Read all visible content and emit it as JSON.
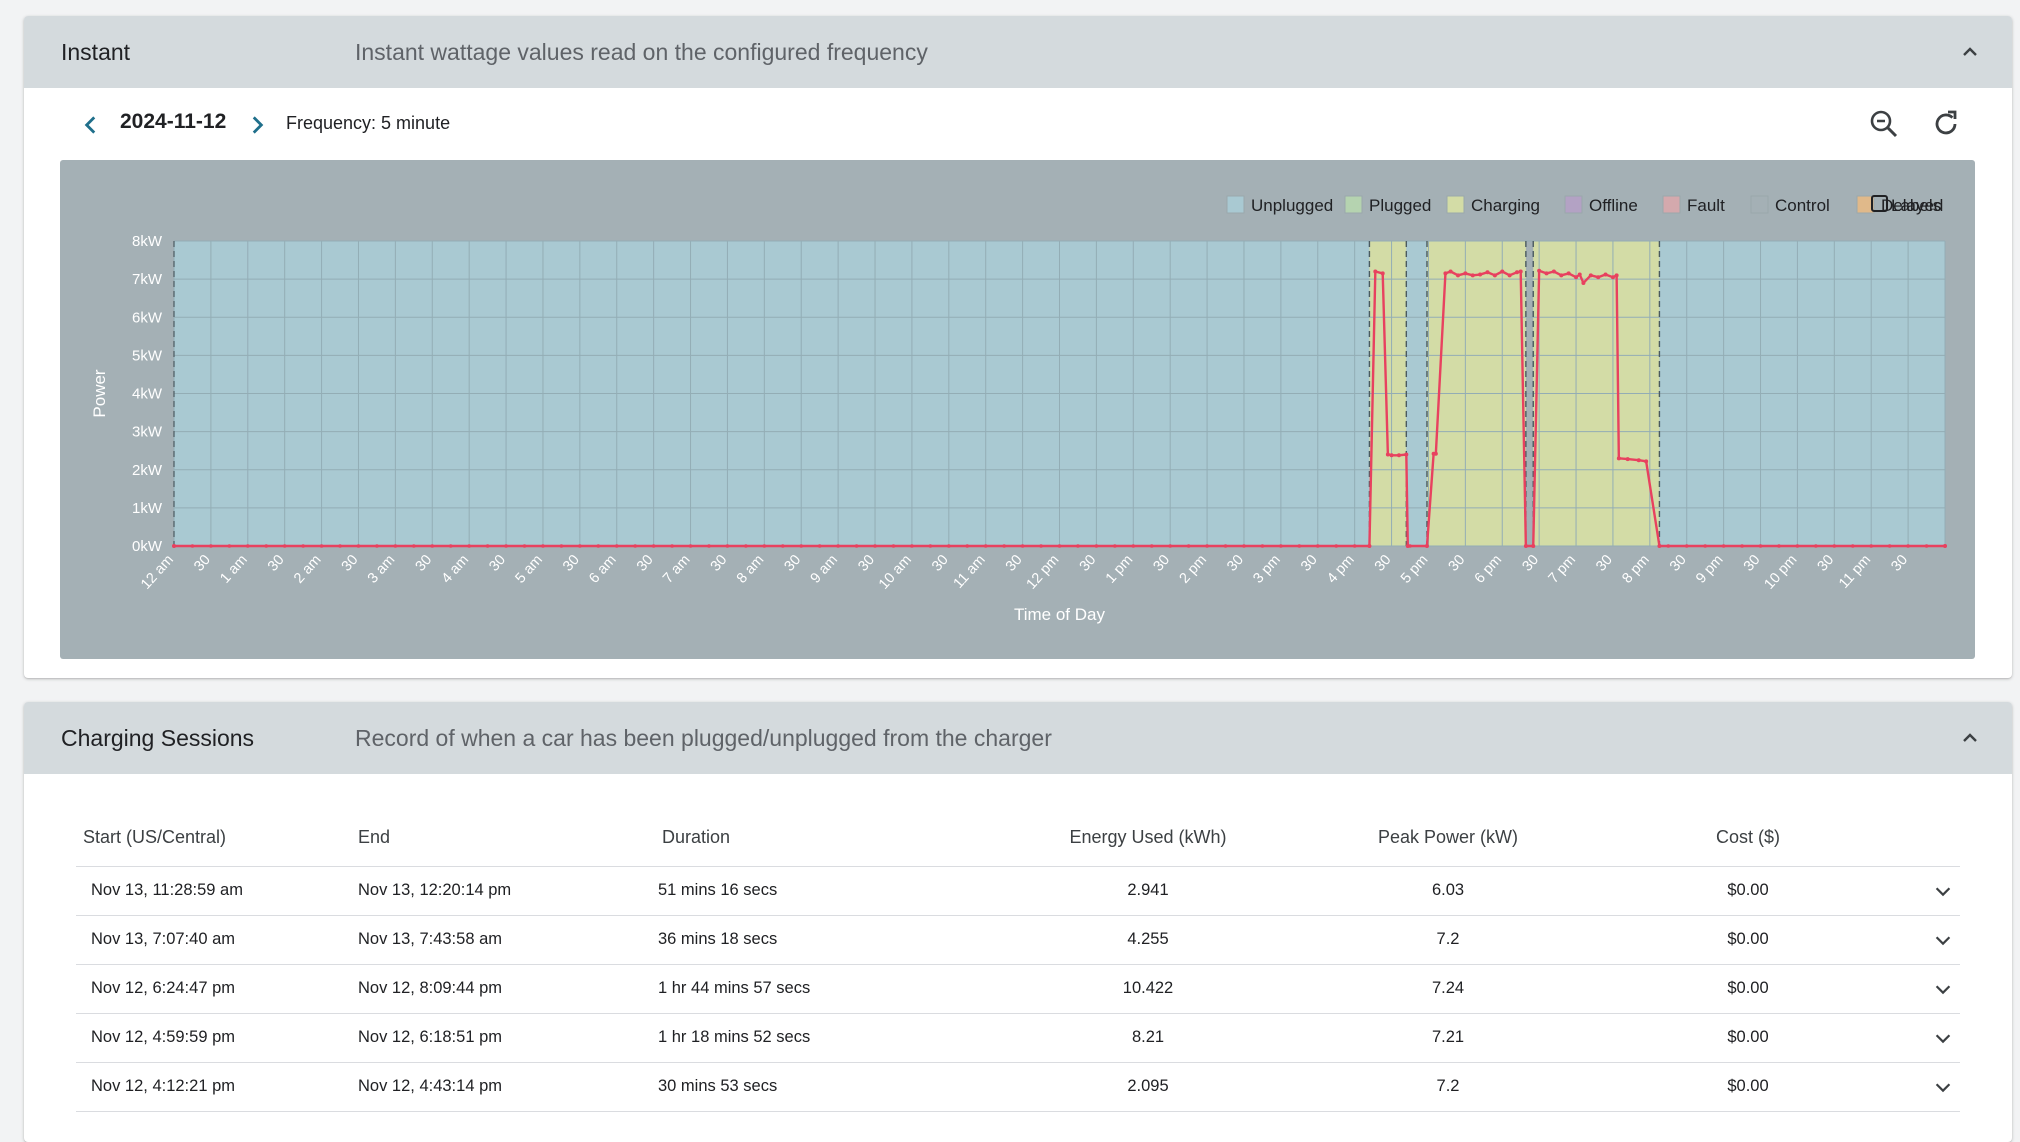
{
  "instant": {
    "title": "Instant",
    "description": "Instant wattage values read on the configured frequency",
    "date": "2024-11-12",
    "frequency": "Frequency: 5 minute"
  },
  "chart_data": {
    "type": "line",
    "xlabel": "Time of Day",
    "ylabel": "Power",
    "y_ticks": [
      "0kW",
      "1kW",
      "2kW",
      "3kW",
      "4kW",
      "5kW",
      "6kW",
      "7kW",
      "8kW"
    ],
    "ylim": [
      0,
      8
    ],
    "xlim": [
      0,
      24
    ],
    "x_tick_labels": [
      "12 am",
      "30",
      "1 am",
      "30",
      "2 am",
      "30",
      "3 am",
      "30",
      "4 am",
      "30",
      "5 am",
      "30",
      "6 am",
      "30",
      "7 am",
      "30",
      "8 am",
      "30",
      "9 am",
      "30",
      "10 am",
      "30",
      "11 am",
      "30",
      "12 pm",
      "30",
      "1 pm",
      "30",
      "2 pm",
      "30",
      "3 pm",
      "30",
      "4 pm",
      "30",
      "5 pm",
      "30",
      "6 pm",
      "30",
      "7 pm",
      "30",
      "8 pm",
      "30",
      "9 pm",
      "30",
      "10 pm",
      "30",
      "11 pm",
      "30"
    ],
    "grid": true,
    "legend": [
      "Unplugged",
      "Plugged",
      "Charging",
      "Offline",
      "Fault",
      "Control",
      "Delayed"
    ],
    "legend_colors": [
      "#a9c9d2",
      "#b5d3b0",
      "#d3dca6",
      "#b3a2c4",
      "#d4a9ad",
      "#a4b0b5",
      "#e0b98a"
    ],
    "legend_position": "top-right",
    "labels_toggle": "Labels",
    "line_color": "#e8415f",
    "bands": [
      {
        "state": "Unplugged",
        "start": 0,
        "end": 16.2
      },
      {
        "state": "Charging",
        "start": 16.2,
        "end": 16.7
      },
      {
        "state": "Unplugged",
        "start": 16.7,
        "end": 16.98
      },
      {
        "state": "Charging",
        "start": 16.98,
        "end": 18.32
      },
      {
        "state": "Charging",
        "start": 18.42,
        "end": 20.13
      },
      {
        "state": "Unplugged",
        "start": 20.13,
        "end": 24
      }
    ],
    "series": [
      {
        "x": [
          0,
          16.2,
          16.28,
          16.38,
          16.45,
          16.5,
          16.6,
          16.7,
          16.72,
          16.98,
          17.07,
          17.1,
          17.23,
          17.3,
          17.4,
          17.5,
          17.6,
          17.7,
          17.8,
          17.9,
          18.0,
          18.1,
          18.2,
          18.25,
          18.32,
          18.42,
          18.5,
          18.6,
          18.7,
          18.8,
          18.9,
          19.0,
          19.05,
          19.1,
          19.2,
          19.3,
          19.4,
          19.5,
          19.55,
          19.58,
          19.7,
          19.85,
          19.95,
          20.13,
          24
        ],
        "y": [
          0,
          0,
          7.2,
          7.15,
          2.4,
          2.38,
          2.38,
          2.4,
          0,
          0,
          2.42,
          2.42,
          7.15,
          7.2,
          7.1,
          7.15,
          7.1,
          7.12,
          7.18,
          7.1,
          7.2,
          7.1,
          7.18,
          7.2,
          0,
          0,
          7.22,
          7.15,
          7.2,
          7.1,
          7.15,
          7.05,
          7.12,
          6.9,
          7.1,
          7.05,
          7.12,
          7.05,
          7.1,
          2.3,
          2.28,
          2.25,
          2.22,
          0,
          0
        ]
      }
    ]
  },
  "sessions": {
    "title": "Charging Sessions",
    "description": "Record of when a car has been plugged/unplugged from the charger",
    "columns": {
      "start": "Start (US/Central)",
      "end": "End",
      "duration": "Duration",
      "energy": "Energy Used (kWh)",
      "peak": "Peak Power (kW)",
      "cost": "Cost ($)"
    },
    "rows": [
      {
        "start": "Nov 13, 11:28:59 am",
        "end": "Nov 13, 12:20:14 pm",
        "duration": "51 mins 16 secs",
        "energy": "2.941",
        "peak": "6.03",
        "cost": "$0.00"
      },
      {
        "start": "Nov 13, 7:07:40 am",
        "end": "Nov 13, 7:43:58 am",
        "duration": "36 mins 18 secs",
        "energy": "4.255",
        "peak": "7.2",
        "cost": "$0.00"
      },
      {
        "start": "Nov 12, 6:24:47 pm",
        "end": "Nov 12, 8:09:44 pm",
        "duration": "1 hr 44 mins 57 secs",
        "energy": "10.422",
        "peak": "7.24",
        "cost": "$0.00"
      },
      {
        "start": "Nov 12, 4:59:59 pm",
        "end": "Nov 12, 6:18:51 pm",
        "duration": "1 hr 18 mins 52 secs",
        "energy": "8.21",
        "peak": "7.21",
        "cost": "$0.00"
      },
      {
        "start": "Nov 12, 4:12:21 pm",
        "end": "Nov 12, 4:43:14 pm",
        "duration": "30 mins 53 secs",
        "energy": "2.095",
        "peak": "7.2",
        "cost": "$0.00"
      }
    ]
  }
}
